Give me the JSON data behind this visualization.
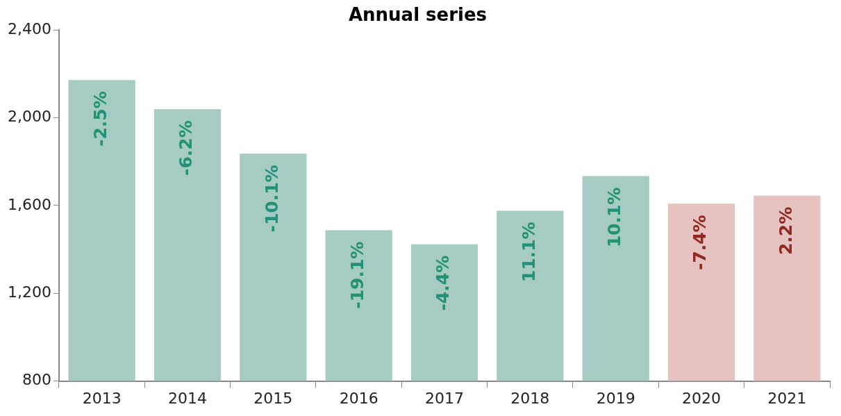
{
  "chart_data": {
    "type": "bar",
    "title": "Annual series",
    "categories": [
      "2013",
      "2014",
      "2015",
      "2016",
      "2017",
      "2018",
      "2019",
      "2020",
      "2021"
    ],
    "values": [
      2172,
      2039,
      1836,
      1487,
      1423,
      1576,
      1734,
      1608,
      1645
    ],
    "colors": [
      "#a6cbc2",
      "#a6cbc2",
      "#a6cbc2",
      "#a6cbc2",
      "#a6cbc2",
      "#a6cbc2",
      "#a6cbc2",
      "#e6c3c1",
      "#e6c3c1"
    ],
    "annotations": [
      {
        "text": "-2.5%",
        "x": "2013",
        "y": 2172
      },
      {
        "text": "-6.2%",
        "x": "2014",
        "y": 2039
      },
      {
        "text": "-10.1%",
        "x": "2015",
        "y": 1836
      },
      {
        "text": "-19.1%",
        "x": "2016",
        "y": 1487
      },
      {
        "text": "-4.4%",
        "x": "2017",
        "y": 1423
      },
      {
        "text": "11.1%",
        "x": "2018",
        "y": 1576
      },
      {
        "text": "10.1%",
        "x": "2019",
        "y": 1734
      },
      {
        "text": "-7.4%",
        "x": "2020",
        "y": 1608
      },
      {
        "text": "2.2%",
        "x": "2021",
        "y": 1645
      }
    ],
    "ylim": [
      800,
      2400
    ],
    "yticks": [
      {
        "value": 800,
        "label": "800"
      },
      {
        "value": 1200,
        "label": "1,200"
      },
      {
        "value": 1600,
        "label": "1,600"
      },
      {
        "value": 2000,
        "label": "2,000"
      },
      {
        "value": 2400,
        "label": "2,400"
      }
    ],
    "grid": false,
    "legend": false
  }
}
